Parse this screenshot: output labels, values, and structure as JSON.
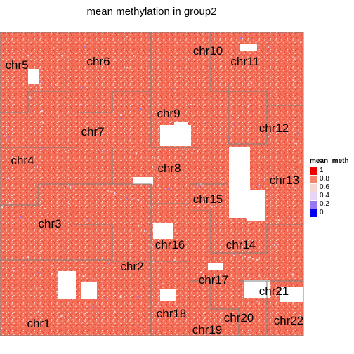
{
  "chart_data": {
    "type": "heatmap",
    "title": "mean methylation in group2",
    "legend": {
      "title": "mean_meth",
      "placement": "right",
      "entries": [
        {
          "label": "1",
          "color": "#ee0000"
        },
        {
          "label": "0.8",
          "color": "#f4846c"
        },
        {
          "label": "0.6",
          "color": "#f6d6d3"
        },
        {
          "label": "0.4",
          "color": "#e8d4f4"
        },
        {
          "label": "0.2",
          "color": "#9a77f2"
        },
        {
          "label": "0",
          "color": "#0000ee"
        }
      ]
    },
    "regions": [
      {
        "label": "chr1"
      },
      {
        "label": "chr2"
      },
      {
        "label": "chr3"
      },
      {
        "label": "chr4"
      },
      {
        "label": "chr5"
      },
      {
        "label": "chr6"
      },
      {
        "label": "chr7"
      },
      {
        "label": "chr8"
      },
      {
        "label": "chr9"
      },
      {
        "label": "chr10"
      },
      {
        "label": "chr11"
      },
      {
        "label": "chr12"
      },
      {
        "label": "chr13"
      },
      {
        "label": "chr14"
      },
      {
        "label": "chr15"
      },
      {
        "label": "chr16"
      },
      {
        "label": "chr17"
      },
      {
        "label": "chr18"
      },
      {
        "label": "chr19"
      },
      {
        "label": "chr20"
      },
      {
        "label": "chr21"
      },
      {
        "label": "chr22"
      }
    ]
  }
}
